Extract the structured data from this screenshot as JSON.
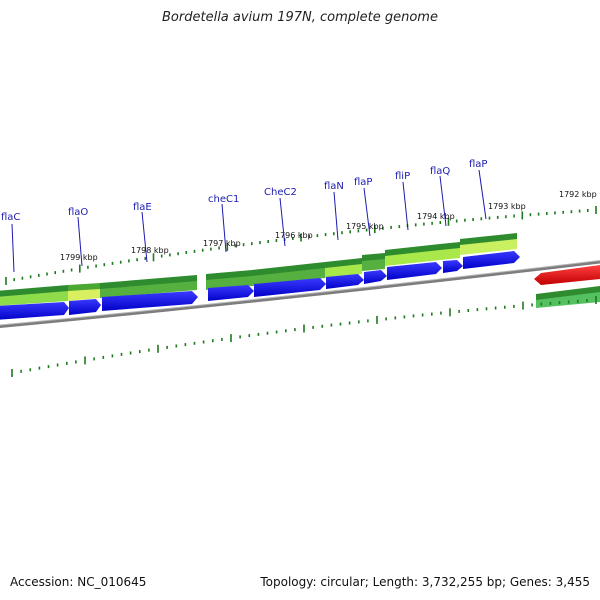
{
  "title": "Bordetella avium 197N, complete genome",
  "footer": {
    "accession": "Accession: NC_010645",
    "summary": "Topology: circular; Length: 3,732,255 bp; Genes: 3,455"
  },
  "colors": {
    "gene_label": "#1b1bb0",
    "tick": "#1f7a1f",
    "cds_blue": "#0000e0",
    "dark_green": "#2e8b2e",
    "light_green": "#9be04a",
    "red": "#e01010",
    "backbone": "#808080"
  },
  "kbp_labels": [
    "1799 kbp",
    "1798 kbp",
    "1797 kbp",
    "1796 kbp",
    "1795 kbp",
    "1794 kbp",
    "1793 kbp",
    "1792 kbp"
  ],
  "gene_labels": [
    "flaC",
    "flaO",
    "flaE",
    "cheC1",
    "CheC2",
    "flaN",
    "flaP",
    "fliP",
    "flaQ",
    "flaP"
  ]
}
